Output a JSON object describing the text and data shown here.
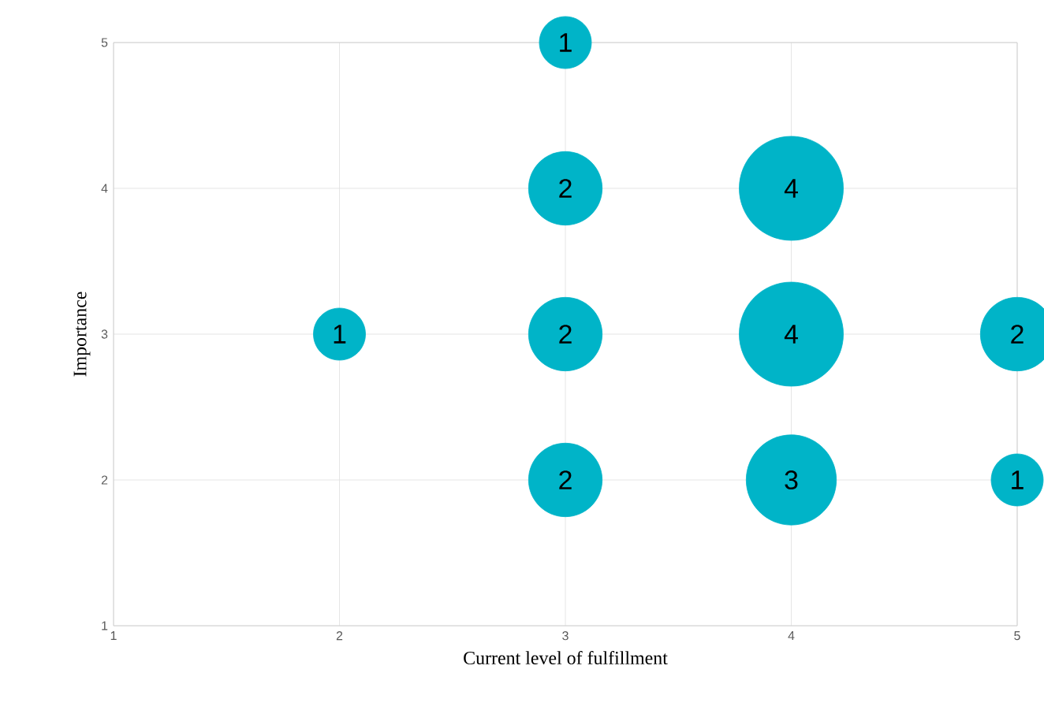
{
  "chart_data": {
    "type": "bubble",
    "xlabel": "Current level of fulfillment",
    "ylabel": "Importance",
    "x": [
      3,
      3,
      4,
      2,
      3,
      4,
      5,
      3,
      4,
      5
    ],
    "values": [
      5,
      4,
      4,
      3,
      3,
      3,
      3,
      2,
      2,
      2
    ],
    "sizes": [
      0.25,
      0.5,
      1,
      0.25,
      0.5,
      1,
      0.5,
      0.5,
      0.75,
      0.25
    ],
    "annotations": [
      {
        "text": "1",
        "x": 3,
        "y": 5
      },
      {
        "text": "2",
        "x": 3,
        "y": 4
      },
      {
        "text": "4",
        "x": 4,
        "y": 4
      },
      {
        "text": "1",
        "x": 2,
        "y": 3
      },
      {
        "text": "2",
        "x": 3,
        "y": 3
      },
      {
        "text": "4",
        "x": 4,
        "y": 3
      },
      {
        "text": "2",
        "x": 5,
        "y": 3
      },
      {
        "text": "2",
        "x": 3,
        "y": 2
      },
      {
        "text": "3",
        "x": 4,
        "y": 2
      },
      {
        "text": "1",
        "x": 5,
        "y": 2
      }
    ],
    "color": "#00b4c8",
    "xlim": [
      1,
      5
    ],
    "ylim": [
      1,
      5
    ],
    "xticks": [
      1,
      2,
      3,
      4,
      5
    ],
    "yticks": [
      1,
      2,
      3,
      4,
      5
    ],
    "grid": true
  }
}
